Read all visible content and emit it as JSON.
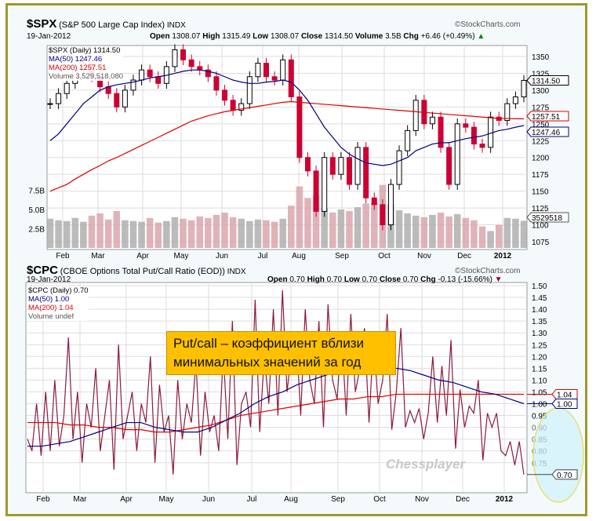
{
  "top": {
    "symbol": "$SPX",
    "name": "(S&P 500 Large Cap Index)",
    "exchange": "INDX",
    "credit": "©StockCharts.com",
    "date": "19-Jan-2012",
    "open_label": "Open",
    "open": "1308.07",
    "high_label": "High",
    "high": "1315.49",
    "low_label": "Low",
    "low": "1308.07",
    "close_label": "Close",
    "close": "1314.50",
    "volume_label": "Volume",
    "volume": "3.5B",
    "chg_label": "Chg",
    "chg": "+6.46 (+0.49%)",
    "legend": [
      "$SPX (Daily) 1314.50",
      "MA(50) 1247.46",
      "MA(200) 1257.51",
      "Volume 3,529,518,080"
    ],
    "tags": {
      "close": "1314.50",
      "ma200": "1257.51",
      "ma50": "1247.46",
      "volume": "3529518"
    }
  },
  "bottom": {
    "symbol": "$CPC",
    "name": "(CBOE Options Total Put/Call Ratio (EOD))",
    "exchange": "INDX",
    "credit": "©StockCharts.com",
    "date": "19-Jan-2012",
    "open_label": "Open",
    "open": "0.70",
    "high_label": "High",
    "high": "0.70",
    "low_label": "Low",
    "low": "0.70",
    "close_label": "Close",
    "close": "0.70",
    "chg_label": "Chg",
    "chg": "-0.13 (-15.66%)",
    "legend": [
      "$CPC (Daily) 0.70",
      "MA(50) 1.00",
      "MA(200) 1.04",
      "Volume undef"
    ],
    "tags": {
      "ma200": "1.04",
      "ma50": "1.00",
      "close": "0.70"
    }
  },
  "annotation": [
    "Put/call – коэффициент вблизи",
    "минимальных значений за год"
  ],
  "watermark": "Chessplayer",
  "colors": {
    "price": "#000000",
    "down": "#cc0033",
    "ma50": "#000080",
    "ma200": "#dd0000",
    "volume": "#d8a0a8",
    "cpc": "#8b1a3a",
    "note": "#ffc000"
  },
  "chart_data": [
    {
      "type": "line",
      "title": "$SPX (S&P 500 Large Cap Index)",
      "x_ticks": [
        "Feb",
        "Mar",
        "Apr",
        "May",
        "Jun",
        "Jul",
        "Aug",
        "Sep",
        "Oct",
        "Nov",
        "Dec",
        "2012"
      ],
      "y_ticks": [
        1350,
        1325,
        1300,
        1275,
        1250,
        1225,
        1200,
        1175,
        1150,
        1125,
        1100,
        1075
      ],
      "ylim": [
        1060,
        1360
      ],
      "vol_ticks": [
        "7.5B",
        "5.0B",
        "2.5B"
      ],
      "vol_ticks_values": [
        7.5,
        5.0,
        2.5
      ],
      "close": [
        1280,
        1295,
        1310,
        1330,
        1340,
        1320,
        1305,
        1295,
        1275,
        1300,
        1315,
        1330,
        1320,
        1310,
        1335,
        1360,
        1345,
        1335,
        1330,
        1320,
        1300,
        1285,
        1270,
        1280,
        1320,
        1340,
        1320,
        1315,
        1345,
        1290,
        1200,
        1180,
        1120,
        1200,
        1175,
        1200,
        1160,
        1215,
        1140,
        1130,
        1100,
        1160,
        1210,
        1240,
        1285,
        1250,
        1260,
        1215,
        1160,
        1250,
        1245,
        1220,
        1215,
        1260,
        1255,
        1280,
        1290,
        1314.5
      ],
      "ma50": [
        1225,
        1235,
        1250,
        1265,
        1280,
        1290,
        1300,
        1305,
        1308,
        1310,
        1312,
        1315,
        1318,
        1320,
        1322,
        1325,
        1328,
        1330,
        1330,
        1328,
        1325,
        1320,
        1315,
        1312,
        1310,
        1310,
        1312,
        1313,
        1315,
        1312,
        1300,
        1285,
        1265,
        1245,
        1230,
        1215,
        1205,
        1198,
        1192,
        1190,
        1188,
        1190,
        1195,
        1200,
        1210,
        1215,
        1220,
        1222,
        1222,
        1225,
        1228,
        1230,
        1232,
        1236,
        1240,
        1242,
        1245,
        1247.46
      ],
      "ma200": [
        1150,
        1155,
        1160,
        1168,
        1175,
        1182,
        1188,
        1195,
        1200,
        1206,
        1212,
        1218,
        1224,
        1230,
        1236,
        1242,
        1248,
        1254,
        1258,
        1262,
        1265,
        1268,
        1270,
        1272,
        1274,
        1276,
        1278,
        1280,
        1282,
        1283,
        1282,
        1281,
        1280,
        1279,
        1278,
        1277,
        1276,
        1275,
        1274,
        1273,
        1272,
        1271,
        1270,
        1269,
        1268,
        1267,
        1266,
        1265,
        1264,
        1263,
        1262,
        1261,
        1260,
        1259,
        1258,
        1258,
        1257.5,
        1257.51
      ],
      "volume_B": [
        3.8,
        3.6,
        3.5,
        3.9,
        3.4,
        4.2,
        4.5,
        3.7,
        4.8,
        3.6,
        3.5,
        3.4,
        3.9,
        3.3,
        3.5,
        4.0,
        3.8,
        3.6,
        4.1,
        3.9,
        4.3,
        4.6,
        4.0,
        3.8,
        3.5,
        3.7,
        3.6,
        3.4,
        3.8,
        5.5,
        8.0,
        6.5,
        6.8,
        5.2,
        4.6,
        5.0,
        4.8,
        5.3,
        5.8,
        5.9,
        8.2,
        5.6,
        4.9,
        4.5,
        4.2,
        4.0,
        4.3,
        4.6,
        4.1,
        4.4,
        3.9,
        3.6,
        2.8,
        2.2,
        3.0,
        3.9,
        3.8,
        3.53
      ]
    },
    {
      "type": "line",
      "title": "$CPC (CBOE Options Total Put/Call Ratio (EOD))",
      "x_ticks": [
        "Feb",
        "Mar",
        "Apr",
        "May",
        "Jun",
        "Jul",
        "Aug",
        "Sep",
        "Oct",
        "Nov",
        "Dec",
        "2012"
      ],
      "y_ticks": [
        1.5,
        1.45,
        1.4,
        1.35,
        1.3,
        1.25,
        1.2,
        1.15,
        1.1,
        1.05,
        1.0,
        0.95,
        0.9,
        0.85,
        0.8,
        0.75
      ],
      "ylim": [
        0.68,
        1.51
      ],
      "values": [
        0.85,
        0.8,
        1.0,
        0.78,
        1.05,
        0.8,
        1.1,
        0.82,
        0.95,
        1.28,
        0.85,
        1.05,
        0.75,
        1.0,
        0.9,
        1.15,
        0.8,
        0.95,
        1.1,
        0.72,
        1.25,
        0.85,
        0.95,
        1.05,
        0.8,
        1.0,
        0.92,
        1.2,
        0.75,
        1.08,
        0.88,
        0.95,
        0.7,
        1.1,
        0.85,
        1.0,
        0.92,
        1.18,
        0.78,
        1.05,
        0.88,
        0.95,
        0.8,
        1.22,
        0.85,
        1.35,
        0.74,
        1.0,
        1.05,
        0.9,
        1.44,
        0.88,
        1.2,
        1.0,
        1.4,
        0.95,
        1.48,
        1.05,
        1.22,
        1.3,
        0.95,
        1.4,
        1.1,
        1.0,
        1.35,
        0.9,
        1.42,
        1.1,
        1.02,
        1.3,
        0.95,
        1.38,
        1.05,
        1.15,
        1.32,
        0.92,
        1.28,
        1.0,
        1.1,
        1.38,
        0.89,
        1.05,
        1.32,
        0.9,
        0.97,
        0.92,
        0.98,
        0.85,
        0.96,
        1.2,
        0.92,
        1.16,
        0.95,
        1.27,
        0.81,
        1.06,
        0.9,
        0.99,
        0.96,
        1.1,
        0.76,
        0.96,
        0.9,
        0.96,
        0.8,
        0.78,
        0.84,
        0.74,
        0.84,
        0.7
      ],
      "ma50": [
        0.82,
        0.82,
        0.83,
        0.84,
        0.86,
        0.88,
        0.9,
        0.92,
        0.92,
        0.9,
        0.89,
        0.88,
        0.88,
        0.9,
        0.93,
        0.96,
        1.0,
        1.03,
        1.05,
        1.08,
        1.1,
        1.12,
        1.14,
        1.15,
        1.15,
        1.16,
        1.15,
        1.14,
        1.12,
        1.1,
        1.09,
        1.07,
        1.05,
        1.04,
        1.02,
        1.0
      ],
      "ma200": [
        0.92,
        0.92,
        0.92,
        0.91,
        0.91,
        0.9,
        0.9,
        0.89,
        0.89,
        0.88,
        0.88,
        0.89,
        0.9,
        0.91,
        0.93,
        0.95,
        0.96,
        0.97,
        0.98,
        0.99,
        1.0,
        1.01,
        1.02,
        1.02,
        1.03,
        1.03,
        1.04,
        1.04,
        1.04,
        1.04,
        1.04,
        1.04,
        1.04,
        1.04,
        1.04,
        1.04
      ]
    }
  ]
}
